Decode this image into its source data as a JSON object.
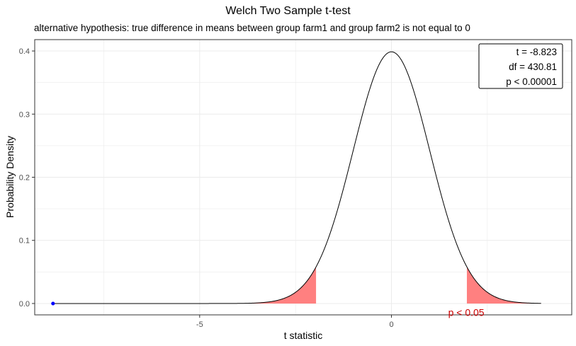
{
  "chart_data": {
    "type": "line",
    "title": "Welch Two Sample t-test",
    "subtitle": "alternative hypothesis: true difference in means between group farm1 and group farm2 is not equal to 0",
    "xlabel": "t statistic",
    "ylabel": "Probability Density",
    "xlim": [
      -9.3,
      4.7
    ],
    "ylim": [
      -0.018,
      0.418
    ],
    "xticks": [
      -5,
      0
    ],
    "yticks": [
      0.0,
      0.1,
      0.2,
      0.3,
      0.4
    ],
    "xtick_labels": [
      "-5",
      "0"
    ],
    "ytick_labels": [
      "0.0",
      "0.1",
      "0.2",
      "0.3",
      "0.4"
    ],
    "grid": true,
    "df": 430.81,
    "curve_range": [
      -8.823,
      3.9
    ],
    "critical_value": 1.966,
    "rejection_color": "#ff8080",
    "curve_color": "#000000",
    "observed": {
      "t": -8.823,
      "density": 0.0,
      "color": "#0000ff"
    },
    "stats_box": {
      "lines": [
        "t = -8.823",
        "df = 430.81",
        "p < 0.00001"
      ],
      "placement": "top-right"
    },
    "annotation": {
      "text": "p < 0.05",
      "x": 1.95,
      "y": -0.014,
      "color": "#cc0000"
    }
  }
}
